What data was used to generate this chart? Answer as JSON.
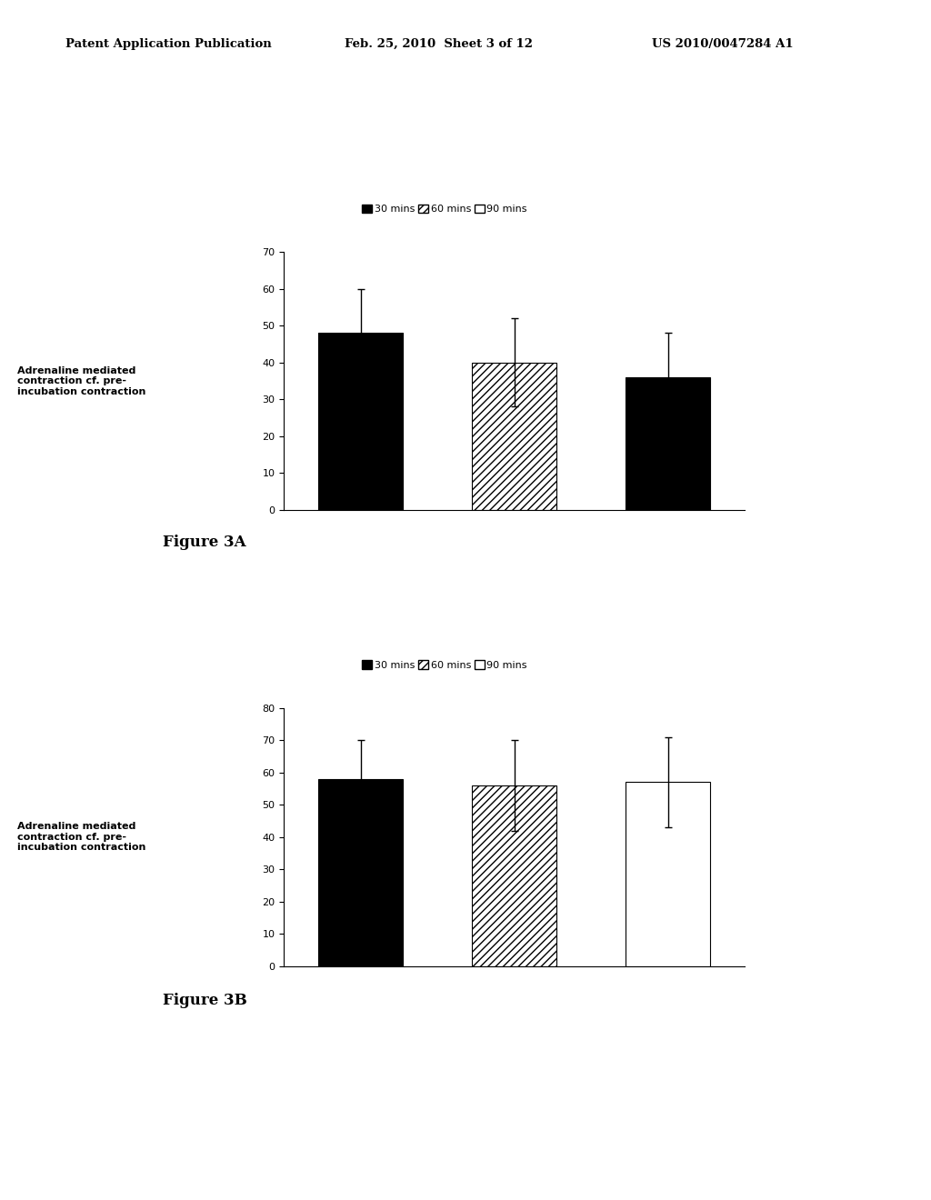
{
  "header_left": "Patent Application Publication",
  "header_mid": "Feb. 25, 2010  Sheet 3 of 12",
  "header_right": "US 2010/0047284 A1",
  "fig3a": {
    "values": [
      48,
      40,
      36
    ],
    "errors": [
      12,
      12,
      12
    ],
    "ylabel": "Adrenaline mediated\ncontraction cf. pre-\nincubation contraction",
    "ylim": [
      0,
      70
    ],
    "yticks": [
      0,
      10,
      20,
      30,
      40,
      50,
      60,
      70
    ],
    "caption": "Figure 3A"
  },
  "fig3b": {
    "values": [
      58,
      56,
      57
    ],
    "errors": [
      12,
      14,
      14
    ],
    "ylabel": "Adrenaline mediated\ncontraction cf. pre-\nincubation contraction",
    "ylim": [
      0,
      80
    ],
    "yticks": [
      0,
      10,
      20,
      30,
      40,
      50,
      60,
      70,
      80
    ],
    "caption": "Figure 3B"
  },
  "legend_labels": [
    "30 mins",
    "60 mins",
    "90 mins"
  ],
  "background_color": "#ffffff",
  "bar_width": 0.55,
  "bar_positions": [
    1,
    2,
    3
  ]
}
